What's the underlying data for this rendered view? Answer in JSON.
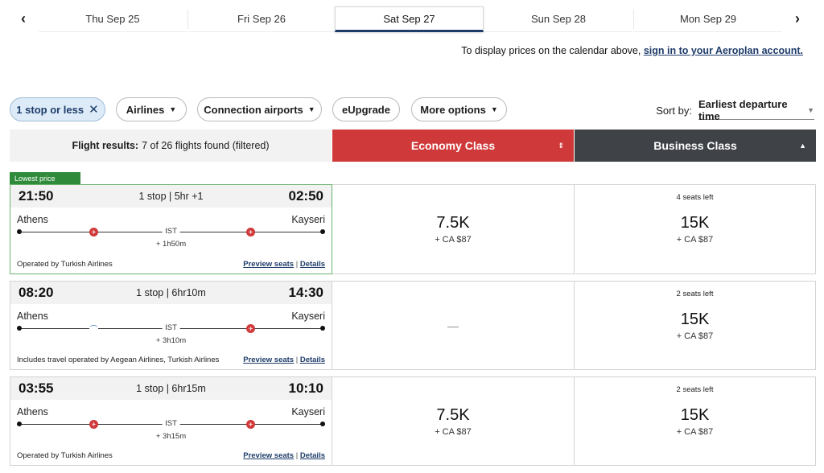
{
  "date_nav": {
    "prev_icon": "chevron-left",
    "next_icon": "chevron-right",
    "prev_glyph": "‹",
    "next_glyph": "›",
    "dates": [
      {
        "label": "Thu Sep 25",
        "active": false
      },
      {
        "label": "Fri Sep 26",
        "active": false
      },
      {
        "label": "Sat Sep 27",
        "active": true
      },
      {
        "label": "Sun Sep 28",
        "active": false
      },
      {
        "label": "Mon Sep 29",
        "active": false
      }
    ]
  },
  "sign_in_note": {
    "text": "To display prices on the calendar above, ",
    "link": "sign in to your Aeroplan account."
  },
  "filters": {
    "stop_filter": "1 stop or less",
    "stop_filter_clear": "✕",
    "airlines": "Airlines",
    "connection_airports": "Connection airports",
    "eupgrade": "eUpgrade",
    "more_options": "More options",
    "caret": "▼"
  },
  "sort": {
    "label": "Sort by:",
    "value": "Earliest departure time",
    "caret": "▼"
  },
  "results_header": {
    "label": "Flight results:",
    "summary": "7 of 26 flights found (filtered)"
  },
  "cabins": {
    "economy": "Economy Class",
    "economy_sort": "⇕",
    "business": "Business Class",
    "business_sort": "▲"
  },
  "colors": {
    "economy": "#d0393a",
    "business": "#3f4347",
    "lowest_price_badge": "#2f8a3a",
    "link": "#1e3c6a"
  },
  "flights": [
    {
      "badge": "Lowest price",
      "depart": "21:50",
      "arrive": "02:50",
      "summary": "1 stop | 5hr +1",
      "origin": "Athens",
      "destination": "Kayseri",
      "connection": "IST",
      "layover": "+ 1h50m",
      "segment_airlines": [
        "turkish-airlines-logo",
        "turkish-airlines-logo"
      ],
      "operated_by": "Operated by Turkish Airlines",
      "preview_seats": "Preview seats",
      "details": "Details",
      "economy": {
        "points": "7.5K",
        "tax": "+ CA $87",
        "seats": ""
      },
      "business": {
        "points": "15K",
        "tax": "+ CA $87",
        "seats": "4 seats left"
      }
    },
    {
      "badge": "",
      "depart": "08:20",
      "arrive": "14:30",
      "summary": "1 stop | 6hr10m",
      "origin": "Athens",
      "destination": "Kayseri",
      "connection": "IST",
      "layover": "+ 3h10m",
      "segment_airlines": [
        "aegean-airlines-logo",
        "turkish-airlines-logo"
      ],
      "operated_by": "Includes travel operated by Aegean Airlines, Turkish Airlines",
      "preview_seats": "Preview seats",
      "details": "Details",
      "economy": {
        "points": "",
        "tax": "",
        "seats": "",
        "unavailable": "—"
      },
      "business": {
        "points": "15K",
        "tax": "+ CA $87",
        "seats": "2 seats left"
      }
    },
    {
      "badge": "",
      "depart": "03:55",
      "arrive": "10:10",
      "summary": "1 stop | 6hr15m",
      "origin": "Athens",
      "destination": "Kayseri",
      "connection": "IST",
      "layover": "+ 3h15m",
      "segment_airlines": [
        "turkish-airlines-logo",
        "turkish-airlines-logo"
      ],
      "operated_by": "Operated by Turkish Airlines",
      "preview_seats": "Preview seats",
      "details": "Details",
      "economy": {
        "points": "7.5K",
        "tax": "+ CA $87",
        "seats": ""
      },
      "business": {
        "points": "15K",
        "tax": "+ CA $87",
        "seats": "2 seats left"
      }
    }
  ]
}
